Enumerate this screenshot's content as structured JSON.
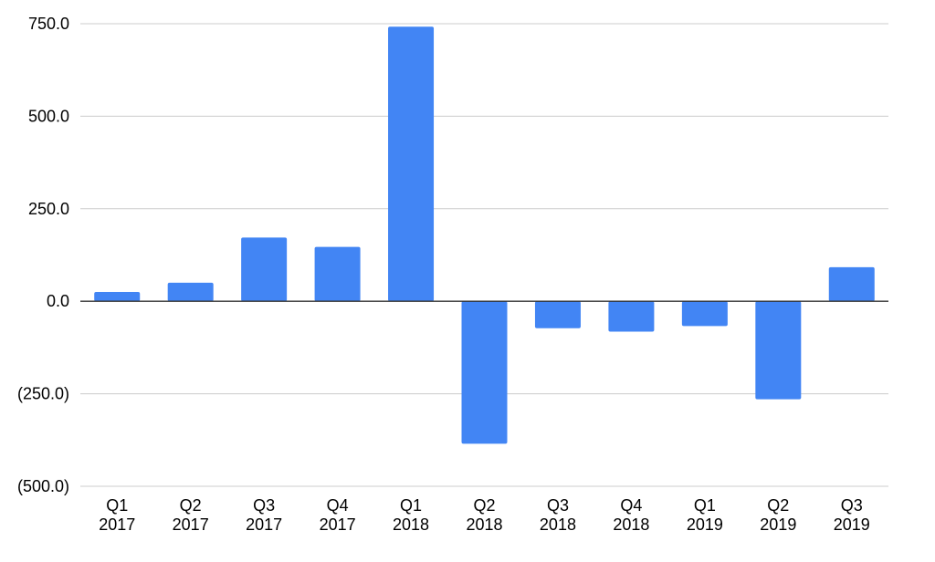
{
  "chart_data": {
    "type": "bar",
    "title": "",
    "xlabel": "",
    "ylabel": "",
    "categories": [
      [
        "Q1",
        "2017"
      ],
      [
        "Q2",
        "2017"
      ],
      [
        "Q3",
        "2017"
      ],
      [
        "Q4",
        "2017"
      ],
      [
        "Q1",
        "2018"
      ],
      [
        "Q2",
        "2018"
      ],
      [
        "Q3",
        "2018"
      ],
      [
        "Q4",
        "2018"
      ],
      [
        "Q1",
        "2019"
      ],
      [
        "Q2",
        "2019"
      ],
      [
        "Q3",
        "2019"
      ]
    ],
    "values": [
      25,
      50,
      172,
      147,
      742,
      -385,
      -73,
      -82,
      -67,
      -265,
      92
    ],
    "ylim": [
      -500,
      750
    ],
    "yticks": [
      {
        "value": 750,
        "label": "750.0"
      },
      {
        "value": 500,
        "label": "500.0"
      },
      {
        "value": 250,
        "label": "250.0"
      },
      {
        "value": 0,
        "label": "0.0"
      },
      {
        "value": -250,
        "label": "(250.0)"
      },
      {
        "value": -500,
        "label": "(500.0)"
      }
    ],
    "grid": true,
    "legend": "none",
    "bar_color": "#4285f4"
  }
}
